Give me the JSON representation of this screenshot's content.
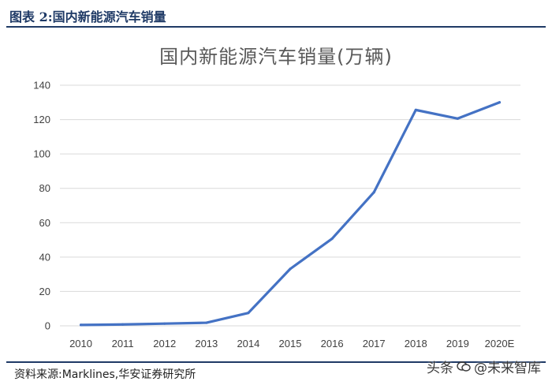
{
  "figure": {
    "caption": "图表 2:国内新能源汽车销量",
    "source": "资料来源:Marklines,华安证券研究所",
    "watermark_prefix": "头条",
    "watermark_handle": "@未来智库"
  },
  "colors": {
    "header": "#1f3a66",
    "line": "#4472c4",
    "grid": "#d9d9d9",
    "text": "#404040"
  },
  "chart_data": {
    "type": "line",
    "title": "国内新能源汽车销量(万辆)",
    "xlabel": "",
    "ylabel": "",
    "categories": [
      "2010",
      "2011",
      "2012",
      "2013",
      "2014",
      "2015",
      "2016",
      "2017",
      "2018",
      "2019",
      "2020E"
    ],
    "series": [
      {
        "values": [
          0.5,
          0.8,
          1.3,
          1.8,
          7.5,
          33.1,
          50.7,
          77.7,
          125.6,
          120.6,
          130
        ]
      }
    ],
    "ylim": [
      0,
      140
    ],
    "yticks": [
      0,
      20,
      40,
      60,
      80,
      100,
      120,
      140
    ],
    "grid": true,
    "legend": "none"
  }
}
